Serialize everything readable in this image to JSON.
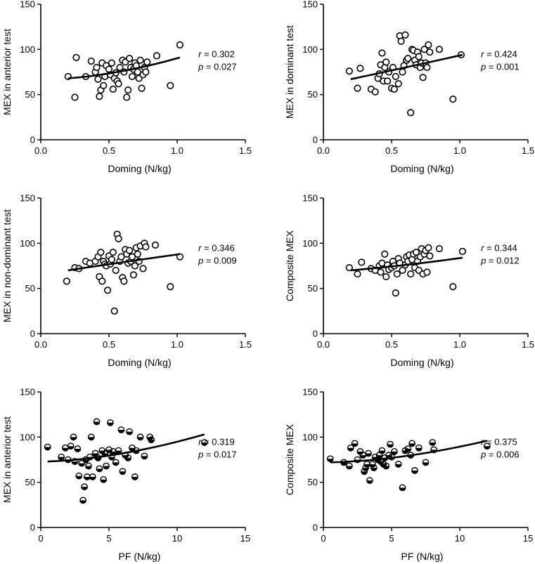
{
  "chart_data": [
    {
      "id": "p1",
      "type": "scatter",
      "marker": "open",
      "xlabel": "Doming  (N/kg)",
      "ylabel": "MEX in anterior test",
      "xlim": [
        0,
        1.5
      ],
      "ylim": [
        0,
        150
      ],
      "xticks": [
        "0.0",
        "0.5",
        "1.0",
        "1.5"
      ],
      "yticks": [
        "0",
        "50",
        "100",
        "150"
      ],
      "stat_r": "= 0.302",
      "stat_p": "= 0.027",
      "r_label": "r",
      "p_label": "p",
      "fit": [
        [
          0.2,
          68
        ],
        [
          0.6,
          76
        ],
        [
          1.02,
          91
        ]
      ],
      "points": [
        [
          0.2,
          70
        ],
        [
          0.26,
          91
        ],
        [
          0.25,
          47
        ],
        [
          0.33,
          70
        ],
        [
          0.37,
          87
        ],
        [
          0.4,
          75
        ],
        [
          0.41,
          80
        ],
        [
          0.42,
          67
        ],
        [
          0.43,
          48
        ],
        [
          0.44,
          55
        ],
        [
          0.45,
          85
        ],
        [
          0.46,
          60
        ],
        [
          0.47,
          70
        ],
        [
          0.48,
          82
        ],
        [
          0.5,
          78
        ],
        [
          0.51,
          72
        ],
        [
          0.52,
          85
        ],
        [
          0.53,
          56
        ],
        [
          0.54,
          68
        ],
        [
          0.55,
          74
        ],
        [
          0.56,
          65
        ],
        [
          0.57,
          62
        ],
        [
          0.58,
          80
        ],
        [
          0.6,
          88
        ],
        [
          0.61,
          75
        ],
        [
          0.62,
          86
        ],
        [
          0.63,
          47
        ],
        [
          0.64,
          55
        ],
        [
          0.65,
          90
        ],
        [
          0.66,
          80
        ],
        [
          0.67,
          70
        ],
        [
          0.68,
          78
        ],
        [
          0.69,
          85
        ],
        [
          0.7,
          82
        ],
        [
          0.71,
          75
        ],
        [
          0.72,
          68
        ],
        [
          0.73,
          88
        ],
        [
          0.74,
          57
        ],
        [
          0.75,
          72
        ],
        [
          0.76,
          80
        ],
        [
          0.77,
          75
        ],
        [
          0.78,
          86
        ],
        [
          0.85,
          93
        ],
        [
          0.95,
          60
        ],
        [
          1.02,
          105
        ]
      ]
    },
    {
      "id": "p2",
      "type": "scatter",
      "marker": "open",
      "xlabel": "Doming  (N/kg)",
      "ylabel": "MEX in dominant test",
      "xlim": [
        0,
        1.5
      ],
      "ylim": [
        0,
        150
      ],
      "xticks": [
        "0.0",
        "0.5",
        "1.0",
        "1.5"
      ],
      "yticks": [
        "0",
        "50",
        "100",
        "150"
      ],
      "stat_r": "= 0.424",
      "stat_p": "= 0.001",
      "r_label": "r",
      "p_label": "p",
      "fit": [
        [
          0.2,
          67
        ],
        [
          0.6,
          80
        ],
        [
          1.02,
          94
        ]
      ],
      "points": [
        [
          0.19,
          76
        ],
        [
          0.25,
          57
        ],
        [
          0.27,
          79
        ],
        [
          0.35,
          56
        ],
        [
          0.38,
          53
        ],
        [
          0.4,
          68
        ],
        [
          0.41,
          73
        ],
        [
          0.42,
          83
        ],
        [
          0.43,
          96
        ],
        [
          0.44,
          65
        ],
        [
          0.45,
          80
        ],
        [
          0.46,
          86
        ],
        [
          0.47,
          65
        ],
        [
          0.48,
          75
        ],
        [
          0.5,
          57
        ],
        [
          0.51,
          80
        ],
        [
          0.52,
          56
        ],
        [
          0.53,
          70
        ],
        [
          0.55,
          62
        ],
        [
          0.56,
          115
        ],
        [
          0.57,
          109
        ],
        [
          0.58,
          75
        ],
        [
          0.59,
          82
        ],
        [
          0.6,
          116
        ],
        [
          0.61,
          88
        ],
        [
          0.62,
          90
        ],
        [
          0.64,
          30
        ],
        [
          0.65,
          100
        ],
        [
          0.66,
          99
        ],
        [
          0.67,
          88
        ],
        [
          0.68,
          83
        ],
        [
          0.69,
          97
        ],
        [
          0.7,
          92
        ],
        [
          0.71,
          80
        ],
        [
          0.72,
          85
        ],
        [
          0.73,
          69
        ],
        [
          0.74,
          100
        ],
        [
          0.75,
          85
        ],
        [
          0.76,
          80
        ],
        [
          0.77,
          105
        ],
        [
          0.78,
          97
        ],
        [
          0.85,
          100
        ],
        [
          0.95,
          45
        ],
        [
          1.01,
          94
        ]
      ]
    },
    {
      "id": "p3",
      "type": "scatter",
      "marker": "open",
      "xlabel": "Doming  (N/kg)",
      "ylabel": "MEX in non-dominant test",
      "xlim": [
        0,
        1.5
      ],
      "ylim": [
        0,
        150
      ],
      "xticks": [
        "0.0",
        "0.5",
        "1.0",
        "1.5"
      ],
      "yticks": [
        "0",
        "50",
        "100",
        "150"
      ],
      "stat_r": "= 0.346",
      "stat_p": "= 0.009",
      "r_label": "r",
      "p_label": "p",
      "fit": [
        [
          0.2,
          70
        ],
        [
          0.6,
          79
        ],
        [
          1.02,
          88
        ]
      ],
      "points": [
        [
          0.19,
          58
        ],
        [
          0.25,
          73
        ],
        [
          0.28,
          72
        ],
        [
          0.33,
          80
        ],
        [
          0.36,
          78
        ],
        [
          0.4,
          80
        ],
        [
          0.42,
          85
        ],
        [
          0.43,
          63
        ],
        [
          0.44,
          90
        ],
        [
          0.45,
          58
        ],
        [
          0.46,
          80
        ],
        [
          0.47,
          77
        ],
        [
          0.48,
          75
        ],
        [
          0.49,
          48
        ],
        [
          0.5,
          86
        ],
        [
          0.51,
          77
        ],
        [
          0.52,
          82
        ],
        [
          0.53,
          90
        ],
        [
          0.54,
          25
        ],
        [
          0.55,
          70
        ],
        [
          0.56,
          110
        ],
        [
          0.57,
          105
        ],
        [
          0.58,
          80
        ],
        [
          0.59,
          85
        ],
        [
          0.6,
          62
        ],
        [
          0.61,
          58
        ],
        [
          0.62,
          93
        ],
        [
          0.63,
          88
        ],
        [
          0.64,
          78
        ],
        [
          0.65,
          92
        ],
        [
          0.66,
          80
        ],
        [
          0.67,
          85
        ],
        [
          0.68,
          65
        ],
        [
          0.69,
          75
        ],
        [
          0.7,
          95
        ],
        [
          0.71,
          88
        ],
        [
          0.72,
          80
        ],
        [
          0.73,
          97
        ],
        [
          0.75,
          72
        ],
        [
          0.76,
          100
        ],
        [
          0.77,
          96
        ],
        [
          0.84,
          98
        ],
        [
          0.95,
          52
        ],
        [
          1.02,
          85
        ]
      ]
    },
    {
      "id": "p4",
      "type": "scatter",
      "marker": "open",
      "xlabel": "Doming  (N/kg)",
      "ylabel": "Composite MEX",
      "xlim": [
        0,
        1.5
      ],
      "ylim": [
        0,
        150
      ],
      "xticks": [
        "0.0",
        "0.5",
        "1.0",
        "1.5"
      ],
      "yticks": [
        "0",
        "50",
        "100",
        "150"
      ],
      "stat_r": "= 0.344",
      "stat_p": "= 0.012",
      "r_label": "r",
      "p_label": "p",
      "fit": [
        [
          0.2,
          70
        ],
        [
          0.6,
          76
        ],
        [
          1.02,
          84
        ]
      ],
      "points": [
        [
          0.19,
          73
        ],
        [
          0.25,
          66
        ],
        [
          0.28,
          79
        ],
        [
          0.35,
          72
        ],
        [
          0.38,
          70
        ],
        [
          0.41,
          75
        ],
        [
          0.42,
          68
        ],
        [
          0.43,
          78
        ],
        [
          0.45,
          88
        ],
        [
          0.46,
          63
        ],
        [
          0.47,
          76
        ],
        [
          0.48,
          71
        ],
        [
          0.5,
          73
        ],
        [
          0.51,
          80
        ],
        [
          0.52,
          75
        ],
        [
          0.53,
          45
        ],
        [
          0.54,
          66
        ],
        [
          0.55,
          83
        ],
        [
          0.56,
          78
        ],
        [
          0.58,
          70
        ],
        [
          0.6,
          76
        ],
        [
          0.61,
          85
        ],
        [
          0.62,
          80
        ],
        [
          0.63,
          87
        ],
        [
          0.64,
          66
        ],
        [
          0.65,
          82
        ],
        [
          0.66,
          88
        ],
        [
          0.67,
          73
        ],
        [
          0.68,
          90
        ],
        [
          0.69,
          80
        ],
        [
          0.7,
          70
        ],
        [
          0.71,
          85
        ],
        [
          0.72,
          94
        ],
        [
          0.73,
          66
        ],
        [
          0.74,
          88
        ],
        [
          0.75,
          92
        ],
        [
          0.76,
          68
        ],
        [
          0.77,
          95
        ],
        [
          0.78,
          86
        ],
        [
          0.85,
          94
        ],
        [
          0.95,
          52
        ],
        [
          1.02,
          91
        ]
      ]
    },
    {
      "id": "p5",
      "type": "scatter",
      "marker": "half",
      "xlabel": "PF  (N/kg)",
      "ylabel": "MEX in anterior test",
      "xlim": [
        0,
        15
      ],
      "ylim": [
        0,
        150
      ],
      "xticks": [
        "0",
        "5",
        "10",
        "15"
      ],
      "yticks": [
        "0",
        "50",
        "100",
        "150"
      ],
      "stat_r": "= 0.319",
      "stat_p": "= 0.017",
      "r_label": "r",
      "p_label": "p",
      "fit": [
        [
          0.5,
          73
        ],
        [
          6,
          82
        ],
        [
          12,
          103
        ]
      ],
      "points": [
        [
          0.5,
          89
        ],
        [
          1.5,
          78
        ],
        [
          1.8,
          88
        ],
        [
          2,
          75
        ],
        [
          2.2,
          90
        ],
        [
          2.4,
          100
        ],
        [
          2.5,
          73
        ],
        [
          2.7,
          87
        ],
        [
          2.8,
          57
        ],
        [
          3,
          71
        ],
        [
          3.1,
          30
        ],
        [
          3.2,
          45
        ],
        [
          3.3,
          75
        ],
        [
          3.4,
          56
        ],
        [
          3.5,
          68
        ],
        [
          3.6,
          78
        ],
        [
          3.7,
          100
        ],
        [
          3.8,
          56
        ],
        [
          4,
          82
        ],
        [
          4.1,
          117
        ],
        [
          4.2,
          77
        ],
        [
          4.3,
          65
        ],
        [
          4.5,
          85
        ],
        [
          4.6,
          53
        ],
        [
          4.7,
          82
        ],
        [
          4.8,
          68
        ],
        [
          5,
          86
        ],
        [
          5.1,
          116
        ],
        [
          5.2,
          78
        ],
        [
          5.3,
          84
        ],
        [
          5.5,
          72
        ],
        [
          5.7,
          85
        ],
        [
          5.9,
          108
        ],
        [
          6,
          62
        ],
        [
          6.2,
          80
        ],
        [
          6.4,
          77
        ],
        [
          6.5,
          106
        ],
        [
          6.7,
          88
        ],
        [
          6.9,
          56
        ],
        [
          7,
          85
        ],
        [
          7.3,
          100
        ],
        [
          7.6,
          79
        ],
        [
          8,
          100
        ],
        [
          8.1,
          97
        ],
        [
          12,
          94
        ]
      ]
    },
    {
      "id": "p6",
      "type": "scatter",
      "marker": "half",
      "xlabel": "PF  (N/kg)",
      "ylabel": "Composite MEX",
      "xlim": [
        0,
        15
      ],
      "ylim": [
        0,
        150
      ],
      "xticks": [
        "0",
        "5",
        "10",
        "15"
      ],
      "yticks": [
        "0",
        "50",
        "100",
        "150"
      ],
      "stat_r": "= 0.375",
      "stat_p": "= 0.006",
      "r_label": "r",
      "p_label": "p",
      "fit": [
        [
          0.5,
          72
        ],
        [
          6,
          79
        ],
        [
          12,
          96
        ]
      ],
      "points": [
        [
          0.5,
          76
        ],
        [
          1.5,
          72
        ],
        [
          1.9,
          68
        ],
        [
          2,
          88
        ],
        [
          2.3,
          93
        ],
        [
          2.5,
          75
        ],
        [
          2.7,
          84
        ],
        [
          2.9,
          80
        ],
        [
          3,
          62
        ],
        [
          3.1,
          66
        ],
        [
          3.2,
          70
        ],
        [
          3.3,
          82
        ],
        [
          3.4,
          52
        ],
        [
          3.6,
          70
        ],
        [
          3.7,
          66
        ],
        [
          3.8,
          78
        ],
        [
          4,
          75
        ],
        [
          4.1,
          80
        ],
        [
          4.2,
          73
        ],
        [
          4.3,
          85
        ],
        [
          4.4,
          70
        ],
        [
          4.5,
          77
        ],
        [
          4.6,
          68
        ],
        [
          4.8,
          80
        ],
        [
          4.9,
          92
        ],
        [
          5,
          78
        ],
        [
          5.2,
          84
        ],
        [
          5.5,
          70
        ],
        [
          5.8,
          44
        ],
        [
          6,
          85
        ],
        [
          6.2,
          87
        ],
        [
          6.4,
          80
        ],
        [
          6.5,
          93
        ],
        [
          6.7,
          63
        ],
        [
          7,
          88
        ],
        [
          7.5,
          72
        ],
        [
          8,
          94
        ],
        [
          8.1,
          86
        ],
        [
          12,
          90
        ]
      ]
    }
  ]
}
